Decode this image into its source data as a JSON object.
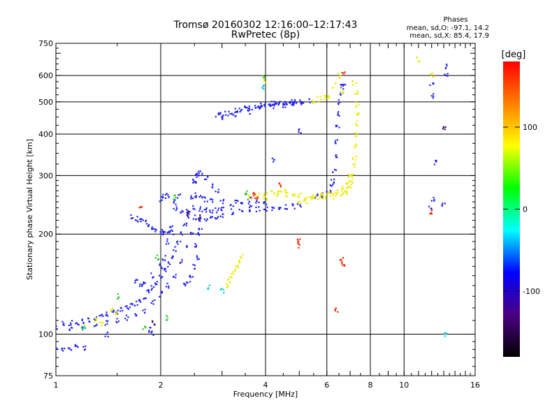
{
  "chart_data": {
    "type": "scatter",
    "title": "Tromsø 20160302 12:16:00–12:17:43",
    "subtitle": "RwPretec (8p)",
    "xlabel": "Frequency [MHz]",
    "ylabel": "Stationary phase Virtual Height [km]",
    "x_scale": "log",
    "y_scale": "log",
    "xlim": [
      1,
      16
    ],
    "ylim": [
      75,
      750
    ],
    "x_ticks": [
      "1",
      "2",
      "4",
      "6",
      "8",
      "10",
      "16"
    ],
    "y_ticks": [
      "75",
      "100",
      "200",
      "300",
      "400",
      "500",
      "600",
      "750"
    ],
    "grid": true,
    "stats": {
      "header": "Phases",
      "o_line": "mean, sd,O: -97.1, 14.2",
      "x_line": "mean, sd,X:  85.4, 17.9"
    },
    "colorbar": {
      "label": "[deg]",
      "range": [
        -180,
        180
      ],
      "ticks": [
        "100",
        "0",
        "-100"
      ],
      "colors": [
        "#ff0000",
        "#ff8000",
        "#ffff00",
        "#00ff00",
        "#00ffff",
        "#0000ff",
        "#4b0082",
        "#000000"
      ]
    },
    "series": [
      {
        "phase": -100,
        "color": "#2222ee",
        "points": [
          [
            1.0,
            108
          ],
          [
            1.05,
            108
          ],
          [
            1.1,
            108
          ],
          [
            1.15,
            108
          ],
          [
            1.2,
            109
          ],
          [
            1.25,
            110
          ],
          [
            1.3,
            112
          ],
          [
            1.35,
            114
          ],
          [
            1.4,
            115
          ],
          [
            1.45,
            116
          ],
          [
            1.5,
            117
          ],
          [
            1.55,
            118
          ],
          [
            1.6,
            120
          ],
          [
            1.65,
            122
          ],
          [
            1.7,
            124
          ],
          [
            1.75,
            127
          ],
          [
            1.8,
            130
          ],
          [
            1.85,
            134
          ],
          [
            1.9,
            138
          ],
          [
            1.95,
            142
          ],
          [
            2.0,
            148
          ],
          [
            2.05,
            155
          ],
          [
            2.1,
            162
          ],
          [
            2.15,
            170
          ],
          [
            2.2,
            180
          ],
          [
            2.25,
            190
          ],
          [
            2.3,
            200
          ],
          [
            2.35,
            215
          ],
          [
            2.4,
            235
          ],
          [
            2.45,
            260
          ],
          [
            2.5,
            290
          ],
          [
            2.55,
            300
          ],
          [
            1.0,
            104
          ],
          [
            1.1,
            104
          ],
          [
            1.2,
            104
          ],
          [
            1.3,
            106
          ],
          [
            1.4,
            108
          ],
          [
            1.5,
            110
          ],
          [
            1.6,
            112
          ],
          [
            1.7,
            115
          ],
          [
            1.8,
            118
          ],
          [
            1.9,
            125
          ],
          [
            2.0,
            132
          ],
          [
            2.1,
            140
          ],
          [
            2.2,
            150
          ],
          [
            2.3,
            165
          ],
          [
            2.4,
            185
          ],
          [
            2.45,
            200
          ],
          [
            1.0,
            91
          ],
          [
            1.05,
            90
          ],
          [
            1.1,
            91
          ],
          [
            1.15,
            92
          ],
          [
            1.2,
            91
          ],
          [
            1.75,
            140
          ],
          [
            1.8,
            142
          ],
          [
            1.9,
            150
          ],
          [
            2.0,
            160
          ],
          [
            2.05,
            170
          ],
          [
            2.1,
            190
          ],
          [
            2.15,
            210
          ],
          [
            2.2,
            240
          ],
          [
            2.25,
            260
          ],
          [
            1.65,
            225
          ],
          [
            1.7,
            222
          ],
          [
            1.75,
            220
          ],
          [
            1.8,
            218
          ],
          [
            1.85,
            214
          ],
          [
            1.9,
            210
          ],
          [
            1.95,
            206
          ],
          [
            2.0,
            203
          ],
          [
            2.05,
            202
          ],
          [
            2.1,
            201
          ],
          [
            2.15,
            203
          ],
          [
            2.0,
            255
          ],
          [
            2.05,
            260
          ],
          [
            2.1,
            262
          ],
          [
            2.2,
            250
          ],
          [
            2.3,
            235
          ],
          [
            2.4,
            228
          ],
          [
            2.5,
            225
          ],
          [
            2.6,
            222
          ],
          [
            2.7,
            220
          ],
          [
            2.8,
            222
          ],
          [
            2.9,
            225
          ],
          [
            3.0,
            228
          ],
          [
            3.2,
            232
          ],
          [
            3.4,
            235
          ],
          [
            3.6,
            237
          ],
          [
            3.8,
            238
          ],
          [
            4.0,
            239
          ],
          [
            4.2,
            240
          ],
          [
            4.4,
            240
          ],
          [
            4.6,
            241
          ],
          [
            4.8,
            242
          ],
          [
            5.0,
            243
          ],
          [
            2.5,
            240
          ],
          [
            2.6,
            238
          ],
          [
            2.7,
            236
          ],
          [
            2.8,
            235
          ],
          [
            2.9,
            236
          ],
          [
            3.0,
            238
          ],
          [
            3.2,
            242
          ],
          [
            3.4,
            245
          ],
          [
            3.6,
            247
          ],
          [
            3.8,
            248
          ],
          [
            4.0,
            250
          ],
          [
            2.5,
            262
          ],
          [
            2.6,
            258
          ],
          [
            2.7,
            255
          ],
          [
            2.8,
            252
          ],
          [
            3.0,
            250
          ],
          [
            3.3,
            252
          ],
          [
            3.6,
            255
          ],
          [
            2.5,
            290
          ],
          [
            2.55,
            300
          ],
          [
            2.6,
            305
          ],
          [
            2.7,
            295
          ],
          [
            2.8,
            280
          ],
          [
            2.9,
            270
          ],
          [
            2.55,
            170
          ],
          [
            2.5,
            160
          ],
          [
            2.45,
            150
          ],
          [
            2.4,
            145
          ],
          [
            2.35,
            140
          ],
          [
            2.5,
            185
          ],
          [
            2.55,
            200
          ],
          [
            2.6,
            210
          ],
          [
            5.6,
            260
          ],
          [
            5.8,
            262
          ],
          [
            6.0,
            266
          ],
          [
            6.1,
            270
          ],
          [
            6.2,
            278
          ],
          [
            6.25,
            290
          ],
          [
            6.3,
            310
          ],
          [
            6.35,
            340
          ],
          [
            6.4,
            380
          ],
          [
            6.45,
            420
          ],
          [
            6.5,
            460
          ],
          [
            6.55,
            500
          ],
          [
            6.6,
            530
          ],
          [
            6.65,
            555
          ],
          [
            6.7,
            570
          ],
          [
            2.9,
            455
          ],
          [
            3.0,
            460
          ],
          [
            3.1,
            462
          ],
          [
            3.2,
            465
          ],
          [
            3.3,
            470
          ],
          [
            3.4,
            475
          ],
          [
            3.5,
            478
          ],
          [
            3.6,
            480
          ],
          [
            3.7,
            482
          ],
          [
            3.8,
            485
          ],
          [
            3.9,
            488
          ],
          [
            4.0,
            490
          ],
          [
            4.1,
            492
          ],
          [
            4.2,
            493
          ],
          [
            4.3,
            495
          ],
          [
            4.4,
            496
          ],
          [
            4.5,
            497
          ],
          [
            4.6,
            498
          ],
          [
            4.7,
            499
          ],
          [
            4.8,
            500
          ],
          [
            4.9,
            500
          ],
          [
            5.0,
            501
          ],
          [
            3.0,
            450
          ],
          [
            3.3,
            458
          ],
          [
            3.6,
            468
          ],
          [
            3.9,
            478
          ],
          [
            4.2,
            485
          ],
          [
            4.5,
            490
          ],
          [
            4.8,
            495
          ],
          [
            5.1,
            500
          ],
          [
            5.4,
            505
          ],
          [
            12.0,
            570
          ],
          [
            12.0,
            520
          ],
          [
            13.2,
            640
          ],
          [
            13.2,
            600
          ],
          [
            12.3,
            330
          ],
          [
            12.1,
            255
          ],
          [
            13.0,
            245
          ],
          [
            11.9,
            240
          ],
          [
            1.85,
            103
          ],
          [
            1.9,
            101
          ],
          [
            1.7,
            145
          ],
          [
            5.0,
            410
          ],
          [
            4.2,
            335
          ],
          [
            1.4,
            100
          ]
        ]
      },
      {
        "phase": 100,
        "color": "#eaea00",
        "points": [
          [
            5.0,
            250
          ],
          [
            5.2,
            252
          ],
          [
            5.4,
            255
          ],
          [
            5.6,
            257
          ],
          [
            5.8,
            258
          ],
          [
            6.0,
            259
          ],
          [
            6.2,
            260
          ],
          [
            6.4,
            262
          ],
          [
            6.6,
            265
          ],
          [
            6.8,
            268
          ],
          [
            6.9,
            272
          ],
          [
            7.0,
            280
          ],
          [
            7.05,
            290
          ],
          [
            7.1,
            300
          ],
          [
            7.15,
            320
          ],
          [
            7.2,
            340
          ],
          [
            7.25,
            370
          ],
          [
            7.3,
            400
          ],
          [
            7.3,
            430
          ],
          [
            7.35,
            460
          ],
          [
            7.35,
            490
          ],
          [
            5.2,
            256
          ],
          [
            5.5,
            260
          ],
          [
            5.8,
            262
          ],
          [
            6.1,
            266
          ],
          [
            6.4,
            268
          ],
          [
            6.7,
            274
          ],
          [
            6.9,
            285
          ],
          [
            7.0,
            300
          ],
          [
            4.0,
            265
          ],
          [
            4.2,
            268
          ],
          [
            4.4,
            270
          ],
          [
            4.6,
            268
          ],
          [
            4.8,
            265
          ],
          [
            5.0,
            262
          ],
          [
            3.6,
            260
          ],
          [
            3.8,
            262
          ],
          [
            4.0,
            258
          ],
          [
            4.3,
            262
          ],
          [
            4.6,
            264
          ],
          [
            3.1,
            140
          ],
          [
            3.15,
            145
          ],
          [
            3.2,
            150
          ],
          [
            3.25,
            155
          ],
          [
            3.3,
            160
          ],
          [
            3.35,
            165
          ],
          [
            3.4,
            172
          ],
          [
            5.5,
            500
          ],
          [
            5.7,
            510
          ],
          [
            5.9,
            515
          ],
          [
            6.1,
            520
          ],
          [
            6.3,
            560
          ],
          [
            6.5,
            600
          ],
          [
            6.6,
            540
          ],
          [
            7.2,
            570
          ],
          [
            7.3,
            530
          ],
          [
            4.0,
            580
          ],
          [
            1.3,
            110
          ],
          [
            1.35,
            108
          ],
          [
            1.2,
            105
          ],
          [
            1.45,
            118
          ],
          [
            1.5,
            115
          ],
          [
            12.0,
            600
          ],
          [
            11.0,
            670
          ]
        ]
      },
      {
        "phase": 170,
        "color": "#ee2200",
        "points": [
          [
            3.7,
            262
          ],
          [
            3.75,
            258
          ],
          [
            4.4,
            280
          ],
          [
            5.0,
            190
          ],
          [
            6.6,
            168
          ],
          [
            6.7,
            162
          ],
          [
            6.7,
            610
          ],
          [
            5.0,
            185
          ],
          [
            1.75,
            240
          ],
          [
            12.0,
            232
          ],
          [
            6.4,
            118
          ]
        ]
      },
      {
        "phase": 30,
        "color": "#22cc22",
        "points": [
          [
            2.2,
            258
          ],
          [
            1.95,
            170
          ],
          [
            3.5,
            265
          ],
          [
            1.8,
            105
          ],
          [
            1.5,
            130
          ],
          [
            3.95,
            590
          ],
          [
            2.1,
            112
          ]
        ]
      },
      {
        "phase": -30,
        "color": "#00cccc",
        "points": [
          [
            2.75,
            138
          ],
          [
            3.0,
            135
          ],
          [
            3.95,
            555
          ],
          [
            13.1,
            100
          ],
          [
            1.2,
            104
          ]
        ]
      },
      {
        "phase": -150,
        "color": "#330066",
        "points": [
          [
            13.0,
            420
          ],
          [
            2.4,
            230
          ],
          [
            1.9,
            108
          ],
          [
            2.6,
            225
          ]
        ]
      }
    ]
  }
}
